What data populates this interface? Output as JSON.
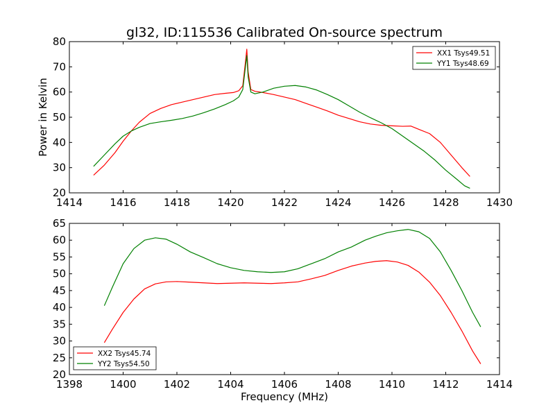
{
  "figure": {
    "title": "gl32, ID:115536 Calibrated On-source spectrum",
    "ylabel": "Power in Kelvin",
    "xlabel": "Frequency (MHz)"
  },
  "chart_data": [
    {
      "type": "line",
      "title": "gl32, ID:115536 Calibrated On-source spectrum",
      "ylabel": "Power in Kelvin",
      "xlabel": "",
      "xlim": [
        1414,
        1430
      ],
      "ylim": [
        20,
        80
      ],
      "xticks": [
        1414,
        1416,
        1418,
        1420,
        1422,
        1424,
        1426,
        1428,
        1430
      ],
      "yticks": [
        20,
        30,
        40,
        50,
        60,
        70,
        80
      ],
      "legend": "top-right",
      "series": [
        {
          "name": "XX1 Tsys49.51",
          "color": "#ff0000",
          "x": [
            1414.9,
            1415.3,
            1415.7,
            1416.0,
            1416.3,
            1416.6,
            1417.0,
            1417.4,
            1417.8,
            1418.2,
            1418.6,
            1419.0,
            1419.4,
            1419.8,
            1420.1,
            1420.3,
            1420.45,
            1420.55,
            1420.6,
            1420.65,
            1420.75,
            1420.9,
            1421.2,
            1421.6,
            1422.0,
            1422.4,
            1422.8,
            1423.2,
            1423.6,
            1424.0,
            1424.4,
            1424.8,
            1425.2,
            1425.6,
            1426.0,
            1426.4,
            1426.7,
            1427.0,
            1427.4,
            1427.8,
            1428.2,
            1428.6,
            1428.9
          ],
          "y": [
            27.0,
            31.0,
            36.0,
            40.5,
            44.5,
            48.0,
            51.5,
            53.5,
            55.0,
            56.0,
            57.0,
            58.0,
            59.0,
            59.5,
            59.8,
            60.5,
            62.5,
            72.0,
            77.0,
            68.0,
            61.0,
            60.3,
            59.8,
            59.0,
            58.0,
            57.0,
            55.5,
            54.0,
            52.5,
            50.8,
            49.5,
            48.2,
            47.3,
            46.8,
            46.6,
            46.4,
            46.5,
            45.2,
            43.5,
            40.0,
            35.0,
            30.0,
            26.5
          ]
        },
        {
          "name": "YY1 Tsys48.69",
          "color": "#008000",
          "x": [
            1414.9,
            1415.3,
            1415.7,
            1416.0,
            1416.3,
            1416.6,
            1417.0,
            1417.4,
            1417.8,
            1418.2,
            1418.6,
            1419.0,
            1419.4,
            1419.8,
            1420.1,
            1420.3,
            1420.45,
            1420.55,
            1420.6,
            1420.65,
            1420.75,
            1420.9,
            1421.2,
            1421.6,
            1422.0,
            1422.4,
            1422.8,
            1423.2,
            1423.6,
            1424.0,
            1424.4,
            1424.8,
            1425.2,
            1425.6,
            1426.0,
            1426.4,
            1426.8,
            1427.2,
            1427.6,
            1428.0,
            1428.4,
            1428.7,
            1428.9
          ],
          "y": [
            30.5,
            35.0,
            39.5,
            42.5,
            44.5,
            46.0,
            47.5,
            48.2,
            48.8,
            49.5,
            50.5,
            51.8,
            53.3,
            55.0,
            56.5,
            58.0,
            61.0,
            70.0,
            74.5,
            66.0,
            60.0,
            59.3,
            60.0,
            61.5,
            62.3,
            62.6,
            62.0,
            60.8,
            59.0,
            57.0,
            54.5,
            52.0,
            49.8,
            47.8,
            45.5,
            42.5,
            39.5,
            36.5,
            33.0,
            29.0,
            25.5,
            22.8,
            21.8
          ]
        }
      ]
    },
    {
      "type": "line",
      "title": "",
      "ylabel": "",
      "xlabel": "Frequency (MHz)",
      "xlim": [
        1398,
        1414
      ],
      "ylim": [
        20,
        65
      ],
      "xticks": [
        1398,
        1400,
        1402,
        1404,
        1406,
        1408,
        1410,
        1412,
        1414
      ],
      "yticks": [
        20,
        25,
        30,
        35,
        40,
        45,
        50,
        55,
        60,
        65
      ],
      "legend": "bottom-left",
      "series": [
        {
          "name": "XX2 Tsys45.74",
          "color": "#ff0000",
          "x": [
            1399.3,
            1399.6,
            1400.0,
            1400.4,
            1400.8,
            1401.2,
            1401.6,
            1402.0,
            1402.5,
            1403.0,
            1403.5,
            1404.0,
            1404.5,
            1405.0,
            1405.5,
            1406.0,
            1406.5,
            1407.0,
            1407.5,
            1408.0,
            1408.5,
            1409.0,
            1409.4,
            1409.8,
            1410.2,
            1410.6,
            1411.0,
            1411.4,
            1411.8,
            1412.2,
            1412.6,
            1413.0,
            1413.3
          ],
          "y": [
            29.5,
            33.5,
            38.5,
            42.5,
            45.5,
            47.0,
            47.6,
            47.7,
            47.5,
            47.3,
            47.1,
            47.2,
            47.3,
            47.2,
            47.1,
            47.3,
            47.6,
            48.5,
            49.5,
            51.0,
            52.3,
            53.2,
            53.7,
            53.9,
            53.5,
            52.5,
            50.5,
            47.5,
            43.5,
            38.5,
            33.0,
            27.0,
            23.2
          ]
        },
        {
          "name": "YY2 Tsys54.50",
          "color": "#008000",
          "x": [
            1399.3,
            1399.6,
            1400.0,
            1400.4,
            1400.8,
            1401.2,
            1401.6,
            1402.0,
            1402.5,
            1403.0,
            1403.5,
            1404.0,
            1404.5,
            1405.0,
            1405.5,
            1406.0,
            1406.5,
            1407.0,
            1407.5,
            1408.0,
            1408.5,
            1409.0,
            1409.4,
            1409.8,
            1410.2,
            1410.6,
            1411.0,
            1411.4,
            1411.8,
            1412.2,
            1412.6,
            1413.0,
            1413.3
          ],
          "y": [
            40.5,
            46.0,
            53.0,
            57.5,
            60.0,
            60.7,
            60.3,
            58.8,
            56.5,
            54.8,
            53.0,
            51.8,
            51.0,
            50.6,
            50.4,
            50.6,
            51.5,
            53.0,
            54.5,
            56.5,
            58.0,
            60.0,
            61.2,
            62.2,
            62.8,
            63.2,
            62.5,
            60.5,
            56.5,
            51.0,
            45.0,
            38.5,
            34.2
          ]
        }
      ]
    }
  ]
}
